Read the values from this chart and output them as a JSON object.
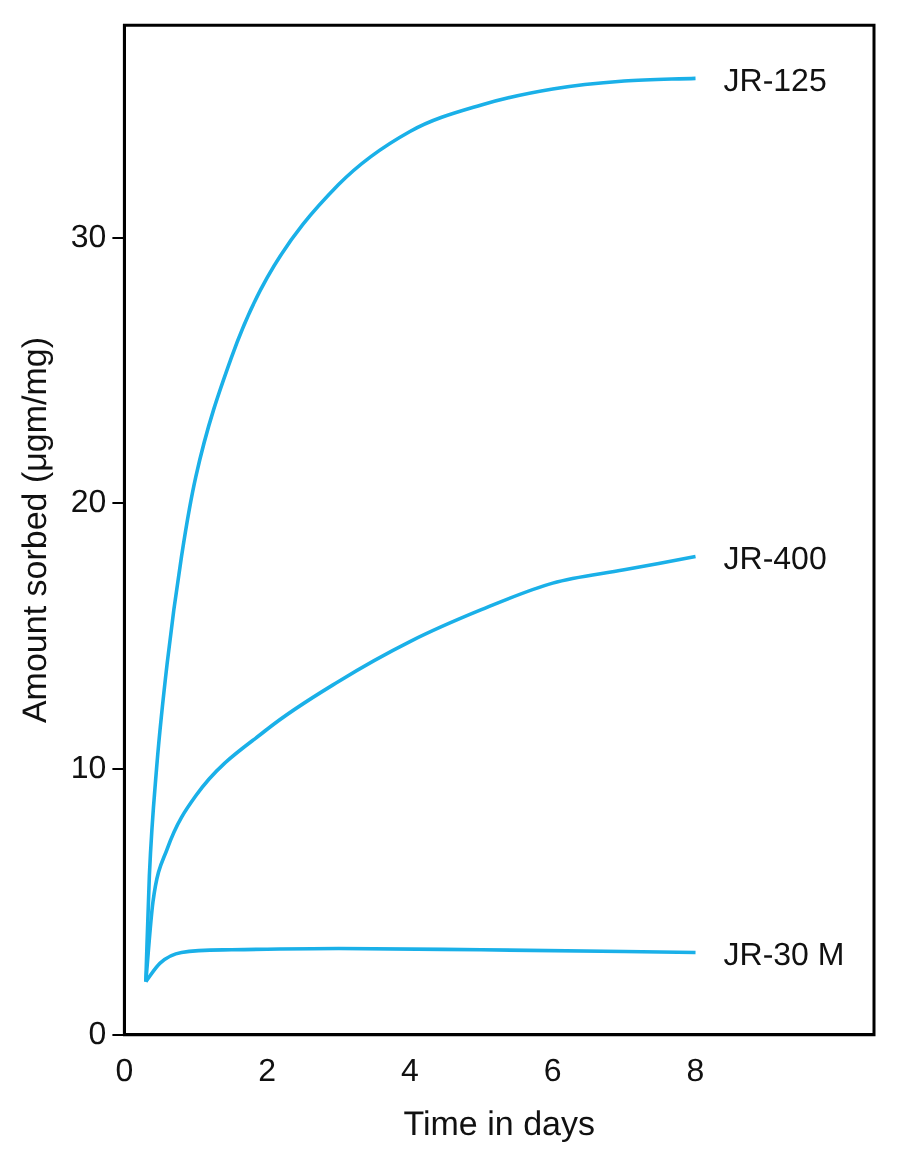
{
  "chart_data": {
    "type": "line",
    "xlabel": "Time in days",
    "ylabel": "Amount sorbed (μgm/mg)",
    "xlim": [
      0,
      10.5
    ],
    "xticks": [
      0,
      2,
      4,
      6,
      8
    ],
    "ylim": [
      0,
      38
    ],
    "yticks": [
      0,
      10,
      20,
      30
    ],
    "grid": false,
    "legend": false,
    "marker": "none",
    "series": [
      {
        "name": "JR-125",
        "color": "#1ab0e8",
        "x": [
          0.3,
          0.35,
          0.45,
          0.6,
          0.8,
          1,
          1.5,
          2,
          3,
          4,
          5,
          6,
          7,
          8
        ],
        "values": [
          2,
          6,
          10,
          14,
          18,
          21,
          25.5,
          28.5,
          32,
          34,
          35,
          35.6,
          35.9,
          36
        ]
      },
      {
        "name": "JR-400",
        "color": "#1ab0e8",
        "x": [
          0.3,
          0.4,
          0.6,
          1,
          2,
          3,
          4,
          5,
          6,
          7,
          8
        ],
        "values": [
          2,
          5,
          7,
          9,
          11.5,
          13.3,
          14.8,
          16,
          17,
          17.5,
          18
        ]
      },
      {
        "name": "JR-30 M",
        "color": "#1ab0e8",
        "x": [
          0.3,
          0.5,
          0.8,
          1.5,
          3,
          5,
          8
        ],
        "values": [
          2,
          2.7,
          3.1,
          3.2,
          3.25,
          3.2,
          3.1
        ]
      }
    ]
  }
}
